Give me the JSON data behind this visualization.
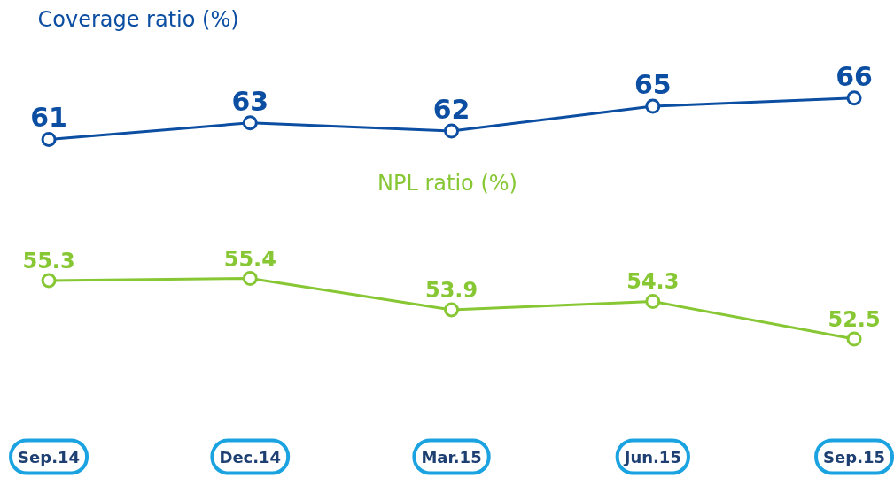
{
  "chart_data": [
    {
      "type": "line",
      "title": "Coverage ratio (%)",
      "categories": [
        null,
        null,
        null,
        null,
        null
      ],
      "series": [
        {
          "color": "#0b4ea2",
          "values": [
            61,
            63,
            62,
            65,
            66
          ]
        }
      ],
      "data_labels": true,
      "marker": "circle"
    },
    {
      "type": "line",
      "title": "NPL ratio (%)",
      "categories": [
        "Sep.14",
        "Dec.14",
        "Mar.15",
        "Jun.15",
        "Sep.15"
      ],
      "series": [
        {
          "color": "#86c733",
          "values": [
            55.3,
            55.4,
            53.9,
            54.3,
            52.5
          ]
        }
      ],
      "data_labels": true,
      "marker": "circle",
      "tick_labels": "x"
    }
  ]
}
